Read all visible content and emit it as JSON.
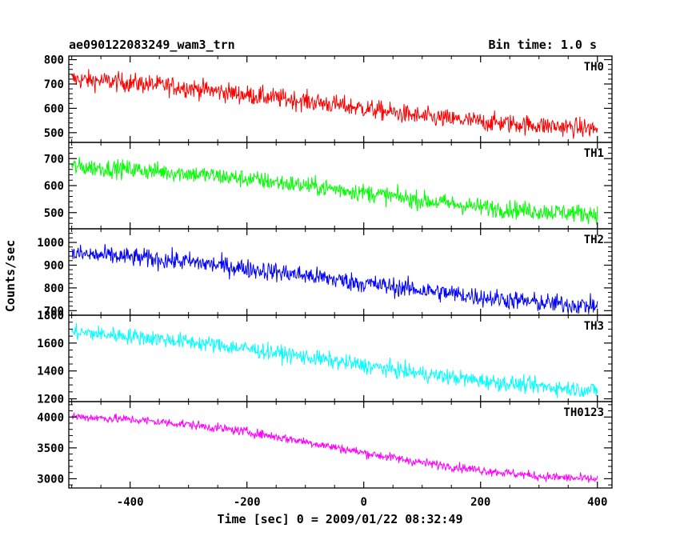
{
  "chart_data": {
    "type": "line",
    "title": "ae090122083249_wam3_trn",
    "subtitle": "Bin time: 1.0 s",
    "xlabel": "Time [sec] 0 = 2009/01/22 08:32:49",
    "ylabel": "Counts/sec",
    "xlim": [
      -505,
      425
    ],
    "xticks": [
      -400,
      -200,
      0,
      200,
      400
    ],
    "panels": [
      {
        "name": "TH0",
        "color": "#ff0000",
        "ylim": [
          460,
          815
        ],
        "yticks": [
          500,
          600,
          700,
          800
        ],
        "trend_x": [
          -500,
          -400,
          -300,
          -200,
          -100,
          0,
          100,
          200,
          300,
          400
        ],
        "trend_y": [
          720,
          705,
          685,
          655,
          630,
          600,
          565,
          545,
          530,
          515
        ],
        "noise_amplitude": 38
      },
      {
        "name": "TH1",
        "color": "#00ff00",
        "ylim": [
          440,
          760
        ],
        "yticks": [
          500,
          600,
          700
        ],
        "trend_x": [
          -500,
          -400,
          -300,
          -200,
          -100,
          0,
          100,
          200,
          300,
          400
        ],
        "trend_y": [
          670,
          660,
          645,
          625,
          600,
          575,
          545,
          520,
          505,
          495
        ],
        "noise_amplitude": 32
      },
      {
        "name": "TH2",
        "color": "#0000ff",
        "ylim": [
          680,
          1060
        ],
        "yticks": [
          700,
          800,
          900,
          1000
        ],
        "trend_x": [
          -500,
          -400,
          -300,
          -200,
          -100,
          0,
          100,
          200,
          300,
          400
        ],
        "trend_y": [
          950,
          935,
          915,
          885,
          855,
          820,
          790,
          760,
          735,
          720
        ],
        "noise_amplitude": 40
      },
      {
        "name": "TH3",
        "color": "#00ffff",
        "ylim": [
          1180,
          1800
        ],
        "yticks": [
          1200,
          1400,
          1600,
          1800
        ],
        "trend_x": [
          -500,
          -400,
          -300,
          -200,
          -100,
          0,
          100,
          200,
          300,
          400
        ],
        "trend_y": [
          1680,
          1650,
          1610,
          1560,
          1500,
          1440,
          1380,
          1330,
          1290,
          1260
        ],
        "noise_amplitude": 55
      },
      {
        "name": "TH0123",
        "color": "#ff00ff",
        "ylim": [
          2850,
          4250
        ],
        "yticks": [
          3000,
          3500,
          4000
        ],
        "trend_x": [
          -500,
          -400,
          -300,
          -200,
          -100,
          0,
          100,
          200,
          300,
          400
        ],
        "trend_y": [
          4010,
          3960,
          3880,
          3760,
          3600,
          3420,
          3260,
          3140,
          3040,
          2990
        ],
        "noise_amplitude": 70
      }
    ]
  }
}
